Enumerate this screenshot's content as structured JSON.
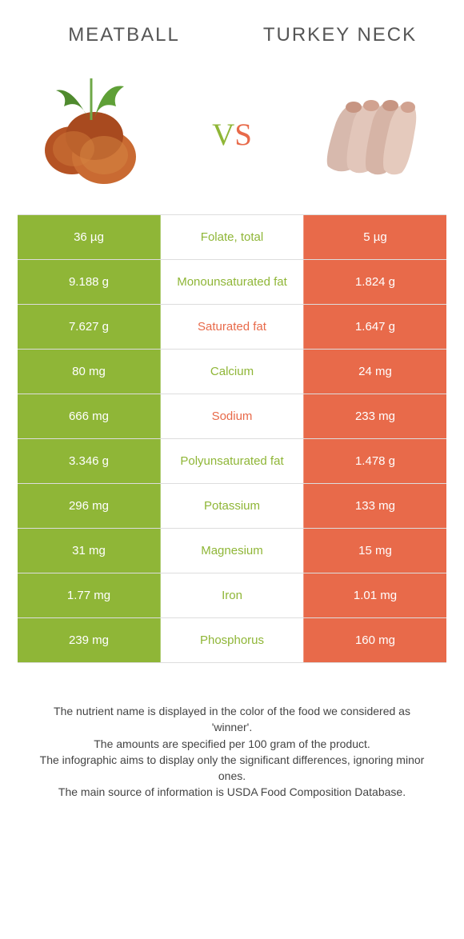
{
  "colors": {
    "left": "#8fb637",
    "right": "#e86a4a"
  },
  "foods": {
    "left": {
      "title": "Meatball"
    },
    "right": {
      "title": "Turkey neck"
    }
  },
  "vs": "vs",
  "rows": [
    {
      "left": "36 µg",
      "label": "Folate, total",
      "right": "5 µg",
      "winner": "left"
    },
    {
      "left": "9.188 g",
      "label": "Monounsaturated fat",
      "right": "1.824 g",
      "winner": "left"
    },
    {
      "left": "7.627 g",
      "label": "Saturated fat",
      "right": "1.647 g",
      "winner": "right"
    },
    {
      "left": "80 mg",
      "label": "Calcium",
      "right": "24 mg",
      "winner": "left"
    },
    {
      "left": "666 mg",
      "label": "Sodium",
      "right": "233 mg",
      "winner": "right"
    },
    {
      "left": "3.346 g",
      "label": "Polyunsaturated fat",
      "right": "1.478 g",
      "winner": "left"
    },
    {
      "left": "296 mg",
      "label": "Potassium",
      "right": "133 mg",
      "winner": "left"
    },
    {
      "left": "31 mg",
      "label": "Magnesium",
      "right": "15 mg",
      "winner": "left"
    },
    {
      "left": "1.77 mg",
      "label": "Iron",
      "right": "1.01 mg",
      "winner": "left"
    },
    {
      "left": "239 mg",
      "label": "Phosphorus",
      "right": "160 mg",
      "winner": "left"
    }
  ],
  "footer": {
    "line1": "The nutrient name is displayed in the color of the food we considered as 'winner'.",
    "line2": "The amounts are specified per 100 gram of the product.",
    "line3": "The infographic aims to display only the significant differences, ignoring minor ones.",
    "line4": "The main source of information is USDA Food Composition Database."
  }
}
